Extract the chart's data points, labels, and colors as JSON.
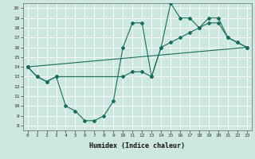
{
  "xlabel": "Humidex (Indice chaleur)",
  "bg_color": "#cce8e0",
  "line_color": "#1a6b5a",
  "xlim": [
    -0.5,
    23.5
  ],
  "ylim": [
    7.5,
    20.5
  ],
  "yticks": [
    8,
    9,
    10,
    11,
    12,
    13,
    14,
    15,
    16,
    17,
    18,
    19,
    20
  ],
  "xticks": [
    0,
    1,
    2,
    3,
    4,
    5,
    6,
    7,
    8,
    9,
    10,
    11,
    12,
    13,
    14,
    15,
    16,
    17,
    18,
    19,
    20,
    21,
    22,
    23
  ],
  "line1_x": [
    0,
    1,
    2,
    3,
    4,
    5,
    6,
    7,
    8,
    9,
    10,
    11,
    12,
    13,
    14,
    15,
    16,
    17,
    18,
    19,
    20,
    21,
    22,
    23
  ],
  "line1_y": [
    14.0,
    13.0,
    12.5,
    13.0,
    10.0,
    9.5,
    8.5,
    8.5,
    9.0,
    10.5,
    16.0,
    18.5,
    18.5,
    13.0,
    16.0,
    20.5,
    19.0,
    19.0,
    18.0,
    19.0,
    19.0,
    17.0,
    16.5,
    16.0
  ],
  "line2_x": [
    0,
    1,
    2,
    3,
    10,
    11,
    12,
    13,
    14,
    15,
    16,
    17,
    18,
    19,
    20,
    21,
    22,
    23
  ],
  "line2_y": [
    14.0,
    13.0,
    12.5,
    13.0,
    13.0,
    13.5,
    13.5,
    13.0,
    16.0,
    16.5,
    17.0,
    17.5,
    18.0,
    18.5,
    18.5,
    17.0,
    16.5,
    16.0
  ],
  "line3_x": [
    0,
    23
  ],
  "line3_y": [
    14.0,
    16.0
  ]
}
